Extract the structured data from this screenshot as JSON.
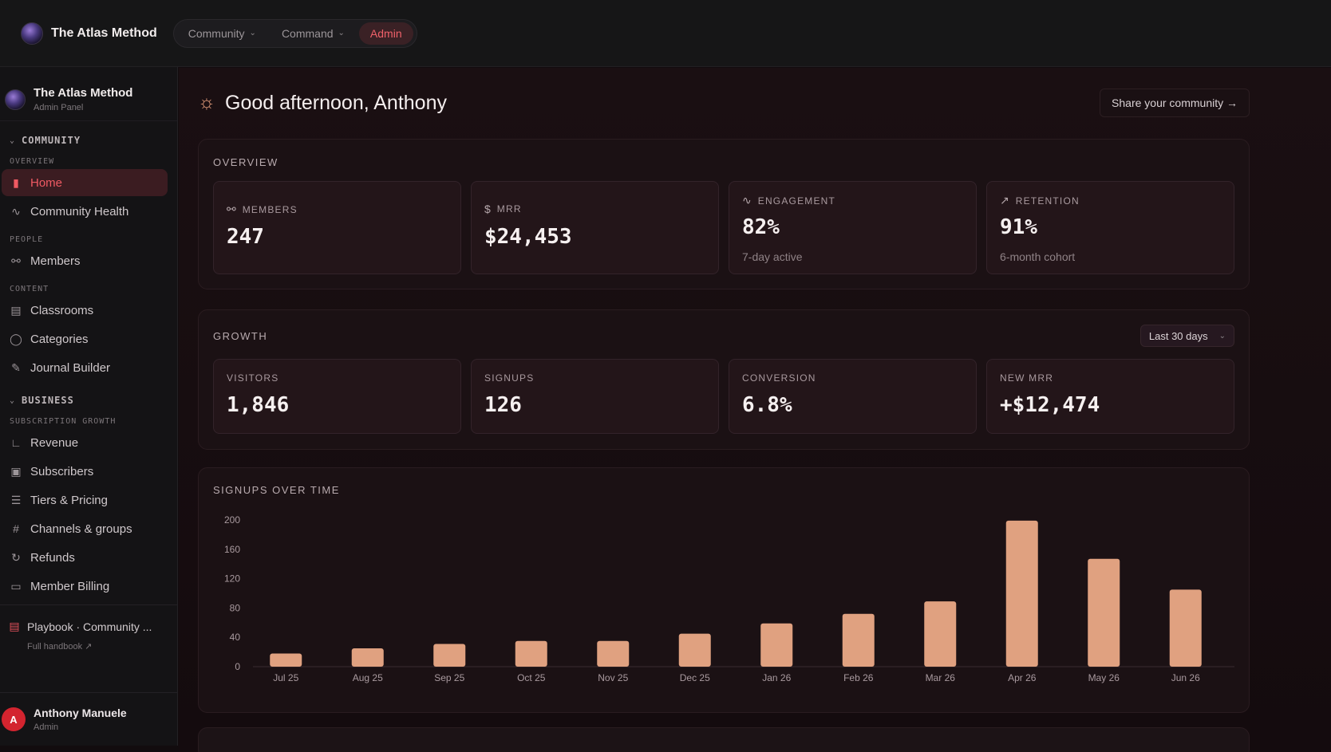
{
  "topbar": {
    "brand_title": "The Atlas Method",
    "nav": [
      {
        "label": "Community",
        "active": false
      },
      {
        "label": "Command",
        "active": false
      },
      {
        "label": "Admin",
        "active": true
      }
    ]
  },
  "sidebar": {
    "title": "The Atlas Method",
    "subtitle": "Admin Panel",
    "community_section": "COMMUNITY",
    "groups": {
      "overview": "OVERVIEW",
      "people": "PEOPLE",
      "content": "CONTENT",
      "subscription": "SUBSCRIPTION GROWTH"
    },
    "business_section": "BUSINESS",
    "items": {
      "home": "Home",
      "health": "Community Health",
      "members": "Members",
      "classrooms": "Classrooms",
      "categories": "Categories",
      "journal": "Journal Builder",
      "revenue": "Revenue",
      "subscribers": "Subscribers",
      "tiers": "Tiers & Pricing",
      "channels": "Channels & groups",
      "refunds": "Refunds",
      "billing": "Member Billing"
    },
    "playbook": {
      "label": "Playbook · Community ...",
      "sub": "Full handbook ↗"
    },
    "user": {
      "initial": "A",
      "name": "Anthony Manuele",
      "role": "Admin"
    }
  },
  "main": {
    "greeting": "Good afternoon, Anthony",
    "share_label": "Share your community →",
    "overview": {
      "title": "OVERVIEW",
      "cards": [
        {
          "label": "MEMBERS",
          "icon": "users-icon",
          "value": "247",
          "sub": ""
        },
        {
          "label": "MRR",
          "icon": "dollar-icon",
          "value": "$24,453",
          "sub": ""
        },
        {
          "label": "ENGAGEMENT",
          "icon": "activity-icon",
          "value": "82%",
          "sub": "7-day active"
        },
        {
          "label": "RETENTION",
          "icon": "trend-up-icon",
          "value": "91%",
          "sub": "6-month cohort"
        }
      ]
    },
    "growth": {
      "title": "GROWTH",
      "range": "Last 30 days",
      "cards": [
        {
          "label": "VISITORS",
          "value": "1,846"
        },
        {
          "label": "SIGNUPS",
          "value": "126"
        },
        {
          "label": "CONVERSION",
          "value": "6.8%"
        },
        {
          "label": "NEW MRR",
          "value": "+$12,474"
        }
      ]
    },
    "chart_title": "SIGNUPS OVER TIME"
  },
  "chart_data": {
    "type": "bar",
    "title": "SIGNUPS OVER TIME",
    "categories": [
      "Jul 25",
      "Aug 25",
      "Sep 25",
      "Oct 25",
      "Nov 25",
      "Dec 25",
      "Jan 26",
      "Feb 26",
      "Mar 26",
      "Apr 26",
      "May 26",
      "Jun 26"
    ],
    "values": [
      18,
      25,
      31,
      35,
      35,
      45,
      59,
      72,
      89,
      199,
      147,
      105
    ],
    "yticks": [
      0,
      40,
      80,
      120,
      160,
      200
    ],
    "ylim": [
      0,
      200
    ],
    "bar_color": "#e0a180",
    "grid": false
  }
}
